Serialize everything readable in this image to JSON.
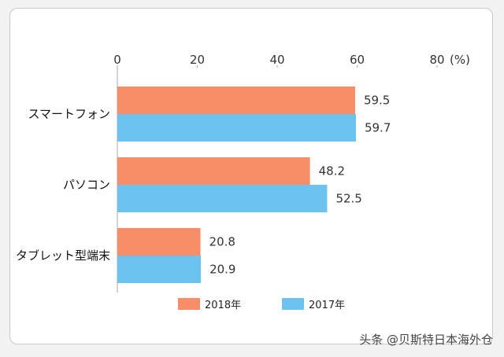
{
  "chart_data": {
    "type": "bar",
    "orientation": "horizontal",
    "unit": "(%)",
    "xlim": [
      0,
      80
    ],
    "xticks": [
      0,
      20,
      40,
      60,
      80
    ],
    "categories": [
      "スマートフォン",
      "パソコン",
      "タブレット型端末"
    ],
    "series": [
      {
        "name": "2018年",
        "color": "#f98d68",
        "values": [
          59.5,
          48.2,
          20.8
        ]
      },
      {
        "name": "2017年",
        "color": "#6cc3f0",
        "values": [
          59.7,
          52.5,
          20.9
        ]
      }
    ],
    "value_labels": [
      [
        "59.5",
        "48.2",
        "20.8"
      ],
      [
        "59.7",
        "52.5",
        "20.9"
      ]
    ],
    "legend": "bottom",
    "grid": false
  },
  "watermark": "头条 @贝斯特日本海外仓"
}
